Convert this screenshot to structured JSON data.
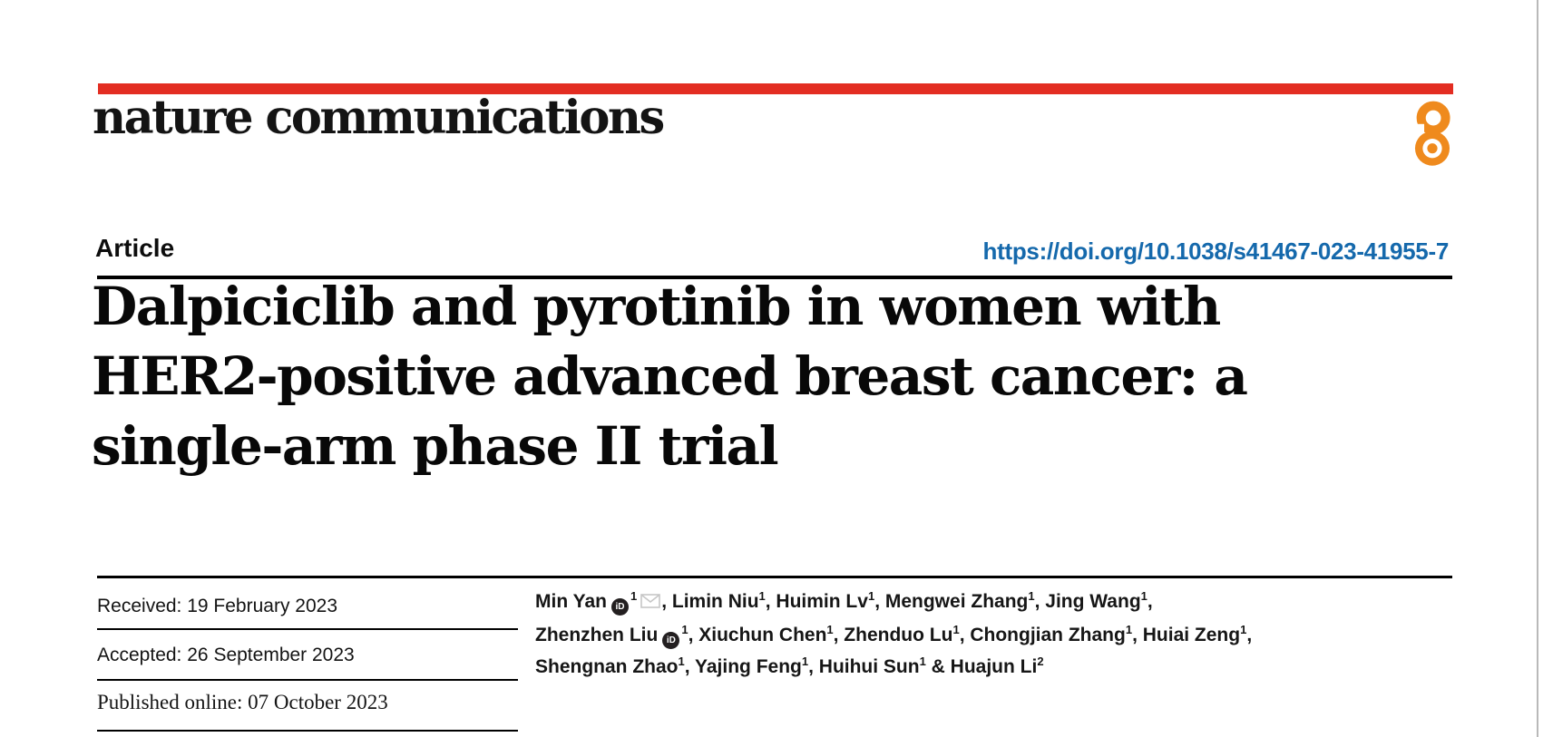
{
  "colors": {
    "brand_red": "#e32d22",
    "open_access_orange": "#ef8a1d",
    "link_blue": "#1569ac"
  },
  "header": {
    "journal_logo": "nature communications",
    "open_access_icon": "open-access-padlock"
  },
  "article": {
    "type_label": "Article",
    "doi_link": "https://doi.org/10.1038/s41467-023-41955-7"
  },
  "title": {
    "lines": [
      "Dalpiciclib and pyrotinib in women with",
      "HER2-positive advanced breast cancer: a",
      "single-arm phase II trial"
    ]
  },
  "dates": {
    "received": {
      "label": "Received:",
      "value": "19 February 2023"
    },
    "accepted": {
      "label": "Accepted:",
      "value": "26 September 2023"
    },
    "published": {
      "label": "Published online:",
      "value": "07 October 2023"
    }
  },
  "authors": {
    "lines": [
      [
        {
          "t": "text",
          "v": "Min Yan"
        },
        {
          "t": "orcid-icon"
        },
        {
          "t": "sup",
          "v": "1"
        },
        {
          "t": "mail-icon"
        },
        {
          "t": "text",
          "v": ", Limin Niu"
        },
        {
          "t": "sup",
          "v": "1"
        },
        {
          "t": "text",
          "v": ", Huimin Lv"
        },
        {
          "t": "sup",
          "v": "1"
        },
        {
          "t": "text",
          "v": ", Mengwei Zhang"
        },
        {
          "t": "sup",
          "v": "1"
        },
        {
          "t": "text",
          "v": ", Jing Wang"
        },
        {
          "t": "sup",
          "v": "1"
        },
        {
          "t": "text",
          "v": ","
        }
      ],
      [
        {
          "t": "text",
          "v": "Zhenzhen Liu"
        },
        {
          "t": "orcid-icon"
        },
        {
          "t": "sup",
          "v": "1"
        },
        {
          "t": "text",
          "v": ", Xiuchun Chen"
        },
        {
          "t": "sup",
          "v": "1"
        },
        {
          "t": "text",
          "v": ", Zhenduo Lu"
        },
        {
          "t": "sup",
          "v": "1"
        },
        {
          "t": "text",
          "v": ", Chongjian Zhang"
        },
        {
          "t": "sup",
          "v": "1"
        },
        {
          "t": "text",
          "v": ", Huiai Zeng"
        },
        {
          "t": "sup",
          "v": "1"
        },
        {
          "t": "text",
          "v": ","
        }
      ],
      [
        {
          "t": "text",
          "v": "Shengnan Zhao"
        },
        {
          "t": "sup",
          "v": "1"
        },
        {
          "t": "text",
          "v": ", Yajing Feng"
        },
        {
          "t": "sup",
          "v": "1"
        },
        {
          "t": "text",
          "v": ", Huihui Sun"
        },
        {
          "t": "sup",
          "v": "1"
        },
        {
          "t": "text",
          "v": " & Huajun Li"
        },
        {
          "t": "sup",
          "v": "2"
        }
      ]
    ]
  }
}
